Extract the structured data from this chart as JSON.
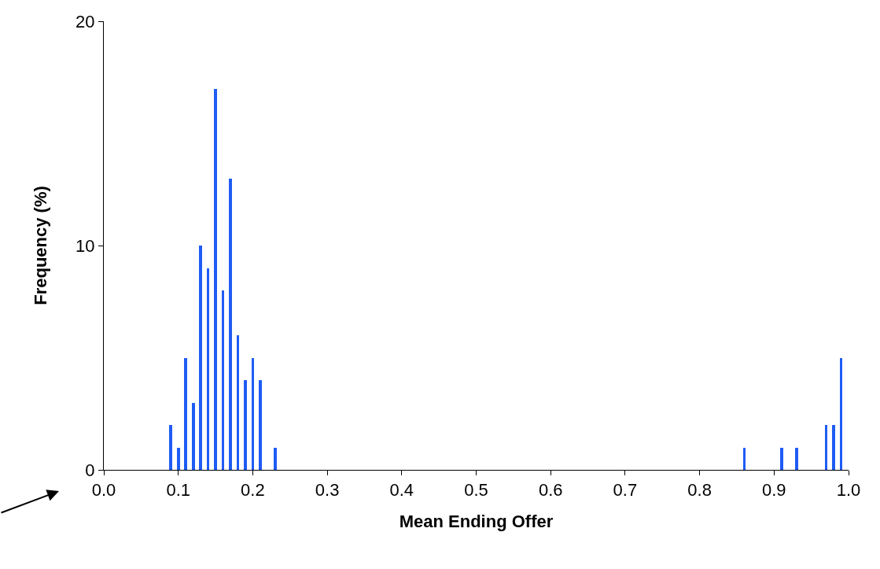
{
  "chart_data": {
    "type": "bar",
    "xlabel": "Mean Ending Offer",
    "ylabel": "Frequency (%)",
    "x": [
      0.09,
      0.1,
      0.11,
      0.12,
      0.13,
      0.14,
      0.15,
      0.16,
      0.17,
      0.18,
      0.19,
      0.2,
      0.21,
      0.23,
      0.86,
      0.91,
      0.93,
      0.97,
      0.98,
      0.99
    ],
    "values": [
      2,
      1,
      5,
      3,
      10,
      9,
      17,
      8,
      13,
      6,
      4,
      5,
      4,
      1,
      1,
      1,
      1,
      2,
      2,
      5
    ],
    "color": "#1f5cf5",
    "xlim": [
      0,
      1
    ],
    "xticks": [
      {
        "value": 0,
        "label": "0.0"
      },
      0.1,
      0.2,
      0.3,
      0.4,
      0.5,
      0.6,
      0.7,
      0.8,
      0.9,
      {
        "value": 1,
        "label": "1.0"
      }
    ],
    "ylim": [
      0,
      20
    ],
    "yticks": [
      0,
      10,
      20
    ]
  }
}
